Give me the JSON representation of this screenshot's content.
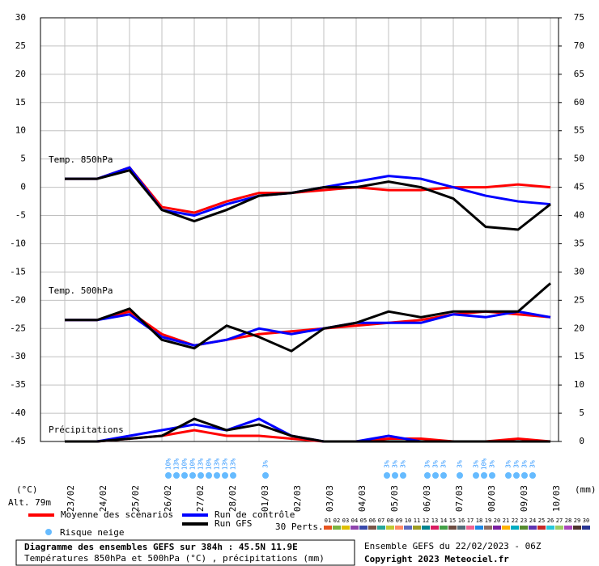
{
  "chart_data": {
    "type": "line",
    "categories": [
      "23/02",
      "24/02",
      "25/02",
      "26/02",
      "27/02",
      "28/02",
      "01/03",
      "02/03",
      "03/03",
      "04/03",
      "05/03",
      "06/03",
      "07/03",
      "08/03",
      "09/03",
      "10/03"
    ],
    "ylabel": "(°C)",
    "y2label": "(mm)",
    "ylim": [
      -45,
      30
    ],
    "yticks": [
      30,
      25,
      20,
      15,
      10,
      5,
      0,
      -5,
      -10,
      -15,
      -20,
      -25,
      -30,
      -35,
      -40,
      -45
    ],
    "y2lim": [
      0,
      75
    ],
    "y2ticks": [
      75,
      70,
      65,
      60,
      55,
      50,
      45,
      40,
      35,
      30,
      25,
      20,
      15,
      10,
      5,
      0
    ],
    "grid": true,
    "annotations": [
      "Temp. 850hPa",
      "Temp. 500hPa",
      "Précipitations",
      "Alt. 79m"
    ],
    "series": [
      {
        "name": "Moyenne des scénarios",
        "color": "#ff0000",
        "values": [
          1.5,
          1.5,
          3.5,
          -3.5,
          -4.5,
          -2.5,
          -1,
          -1,
          -0.5,
          0,
          -0.5,
          -0.5,
          0,
          0,
          0.5,
          0
        ]
      },
      {
        "name": "Run de contrôle",
        "color": "#0000ff",
        "values": [
          1.5,
          1.5,
          3.5,
          -4,
          -5,
          -3,
          -1.5,
          -1,
          0,
          1,
          2,
          1.5,
          0,
          -1.5,
          -2.5,
          -3
        ]
      },
      {
        "name": "Run GFS",
        "color": "#000000",
        "values": [
          1.5,
          1.5,
          3,
          -4,
          -6,
          -4,
          -1.5,
          -1,
          0,
          0,
          1,
          0,
          -2,
          -7,
          -7.5,
          -3
        ]
      },
      {
        "color": "#ff0000",
        "values": [
          -23.5,
          -23.5,
          -22,
          -26,
          -28,
          -27,
          -26,
          -25.5,
          -25,
          -24.5,
          -24,
          -23.5,
          -22.5,
          -22,
          -22.5,
          -23
        ]
      },
      {
        "color": "#0000ff",
        "values": [
          -23.5,
          -23.5,
          -22.5,
          -26.5,
          -28,
          -27,
          -25,
          -26,
          -25,
          -24,
          -24,
          -24,
          -22.5,
          -23,
          -22,
          -23
        ]
      },
      {
        "color": "#000000",
        "values": [
          -23.5,
          -23.5,
          -21.5,
          -27,
          -28.5,
          -24.5,
          -26.5,
          -29,
          -25,
          -24,
          -22,
          -23,
          -22,
          -22,
          -22,
          -17
        ]
      },
      {
        "color": "#ff0000",
        "axis": "y2",
        "values": [
          0,
          0,
          0.5,
          1,
          2,
          1,
          1,
          0.5,
          0,
          0,
          0.5,
          0.5,
          0,
          0,
          0.5,
          0
        ]
      },
      {
        "color": "#0000ff",
        "axis": "y2",
        "values": [
          0,
          0,
          1,
          2,
          3,
          2,
          4,
          1,
          0,
          0,
          1,
          0,
          0,
          0,
          0,
          0
        ]
      },
      {
        "color": "#000000",
        "axis": "y2",
        "values": [
          0,
          0,
          0.5,
          1,
          4,
          2,
          3,
          1,
          0,
          0,
          0,
          0,
          0,
          0,
          0,
          0
        ]
      }
    ]
  },
  "snow_risk": {
    "name": "Risque neige",
    "x": [
      3.2,
      3.45,
      3.7,
      3.95,
      4.2,
      4.45,
      4.7,
      4.95,
      5.2,
      6.2,
      9.95,
      10.2,
      10.45,
      11.2,
      11.45,
      11.7,
      12.2,
      12.7,
      12.95,
      13.2,
      13.7,
      13.95,
      14.2,
      14.45
    ],
    "values": [
      10,
      13,
      10,
      10,
      13,
      10,
      13,
      13,
      13,
      3,
      3,
      3,
      3,
      3,
      3,
      3,
      3,
      3,
      10,
      3,
      3,
      3,
      3,
      3
    ],
    "value_labels": [
      "10%",
      "13%",
      "10%",
      "10%",
      "13%",
      "10%",
      "13%",
      "13%",
      "13%",
      "3%",
      "3%",
      "3%",
      "3%",
      "3%",
      "3%",
      "3%",
      "3%",
      "3%",
      "10%",
      "3%",
      "3%",
      "3%",
      "3%",
      "3%"
    ]
  },
  "perts": {
    "title": "30 Perts.",
    "labels": [
      "01",
      "02",
      "03",
      "04",
      "05",
      "06",
      "07",
      "08",
      "09",
      "10",
      "11",
      "12",
      "13",
      "14",
      "15",
      "16",
      "17",
      "18",
      "19",
      "20",
      "21",
      "22",
      "23",
      "24",
      "25",
      "26",
      "27",
      "28",
      "29",
      "30"
    ],
    "colors": [
      "#e8541e",
      "#7cb342",
      "#e0c000",
      "#8e44ad",
      "#3949ab",
      "#795548",
      "#26a69a",
      "#c0ca33",
      "#ff8a65",
      "#5c6bc0",
      "#9e9d24",
      "#00838f",
      "#d81b60",
      "#43a047",
      "#6d4c41",
      "#546e7a",
      "#f06292",
      "#1e88e5",
      "#8d6e63",
      "#7b1fa2",
      "#ffb300",
      "#00acc1",
      "#558b2f",
      "#5e35b1",
      "#c62828",
      "#26c6da",
      "#9ccc65",
      "#ab47bc",
      "#4e342e",
      "#283593"
    ]
  },
  "footer": {
    "title": "Diagramme des ensembles GEFS sur 384h : 45.5N 11.9E",
    "subtitle": "Températures 850hPa et 500hPa (°C) , précipitations (mm)",
    "run": "Ensemble GEFS du 22/02/2023 - 06Z",
    "copyright": "Copyright 2023 Meteociel.fr"
  }
}
